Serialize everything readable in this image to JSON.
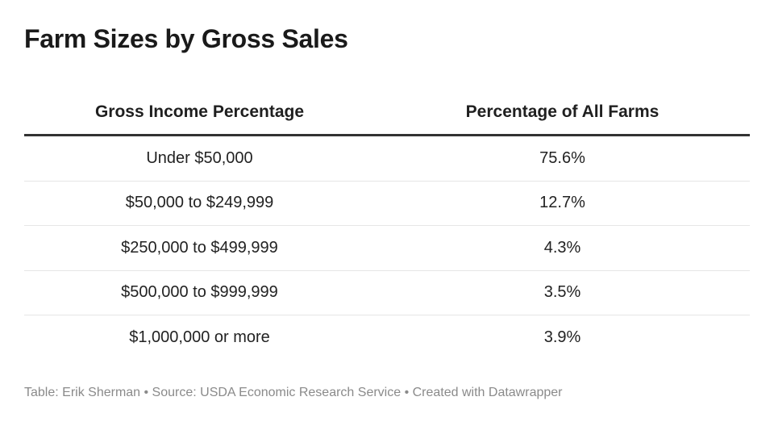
{
  "chart_data": {
    "type": "table",
    "title": "Farm Sizes by Gross Sales",
    "columns": [
      "Gross Income Percentage",
      "Percentage of All Farms"
    ],
    "rows": [
      {
        "category": "Under $50,000",
        "value_label": "75.6%",
        "value": 75.6
      },
      {
        "category": "$50,000 to $249,999",
        "value_label": "12.7%",
        "value": 12.7
      },
      {
        "category": "$250,000 to $499,999",
        "value_label": "4.3%",
        "value": 4.3
      },
      {
        "category": "$500,000 to $999,999",
        "value_label": "3.5%",
        "value": 3.5
      },
      {
        "category": "$1,000,000 or more",
        "value_label": "3.9%",
        "value": 3.9
      }
    ],
    "footer": "Table: Erik Sherman • Source: USDA Economic Research Service • Created with Datawrapper"
  }
}
